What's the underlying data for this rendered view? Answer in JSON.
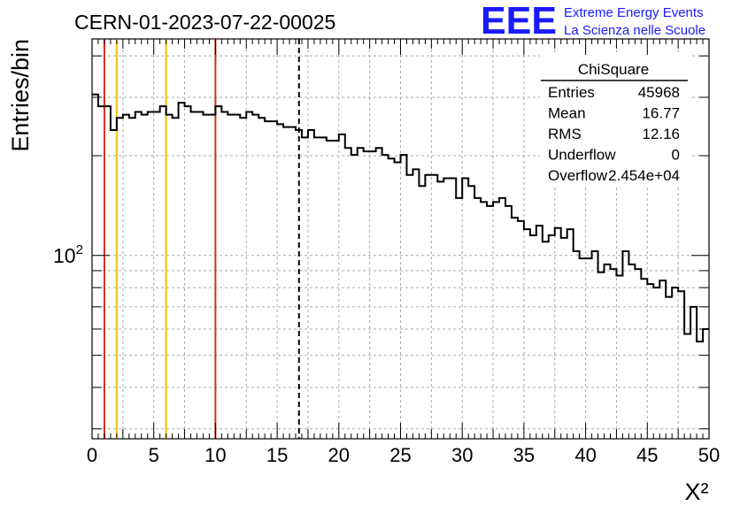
{
  "header": {
    "title": "CERN-01-2023-07-22-00025",
    "logo_text": "EEE",
    "logo_line1": "Extreme Energy Events",
    "logo_line2": "La Scienza nelle Scuole",
    "logo_color": "#1a1aff"
  },
  "stats": {
    "name": "ChiSquare",
    "rows": [
      {
        "label": "Entries",
        "value": "45968"
      },
      {
        "label": "Mean",
        "value": "16.77"
      },
      {
        "label": "RMS",
        "value": "12.16"
      },
      {
        "label": "Underflow",
        "value": "0"
      },
      {
        "label": "Overflow",
        "value": "2.454e+04"
      }
    ]
  },
  "chart_data": {
    "type": "histogram",
    "xlabel": "X²",
    "ylabel": "Entries/bin",
    "xlim": [
      0,
      50
    ],
    "ylim": [
      28,
      450
    ],
    "y_scale": "log",
    "x_ticks": [
      "0",
      "5",
      "10",
      "15",
      "20",
      "25",
      "30",
      "35",
      "40",
      "45",
      "50"
    ],
    "x_tick_values": [
      0,
      5,
      10,
      15,
      20,
      25,
      30,
      35,
      40,
      45,
      50
    ],
    "y_tick_label": "10",
    "y_tick_label_exp": "2",
    "y_tick_value": 100,
    "grid": true,
    "bin_width": 0.5,
    "counts": [
      306,
      282,
      282,
      239,
      260,
      266,
      260,
      271,
      266,
      271,
      271,
      282,
      266,
      260,
      289,
      282,
      271,
      271,
      266,
      266,
      282,
      271,
      266,
      266,
      260,
      271,
      266,
      260,
      254,
      254,
      249,
      244,
      244,
      239,
      227,
      239,
      227,
      227,
      222,
      222,
      232,
      211,
      201,
      211,
      206,
      206,
      211,
      201,
      196,
      191,
      201,
      175,
      182,
      162,
      175,
      175,
      167,
      171,
      171,
      149,
      171,
      162,
      149,
      145,
      141,
      145,
      149,
      141,
      130,
      127,
      120,
      115,
      123,
      110,
      115,
      121,
      113,
      120,
      103,
      98,
      98,
      103,
      89,
      94,
      91,
      87,
      103,
      94,
      91,
      85,
      82,
      80,
      84,
      75,
      80,
      78,
      58,
      70,
      55,
      60
    ],
    "vertical_lines": [
      {
        "x": 1,
        "color": "#dd2a1b",
        "style": "solid"
      },
      {
        "x": 2,
        "color": "#f5c000",
        "style": "solid"
      },
      {
        "x": 6,
        "color": "#f5c000",
        "style": "solid"
      },
      {
        "x": 10,
        "color": "#dd2a1b",
        "style": "solid"
      },
      {
        "x": 16.77,
        "color": "#000000",
        "style": "dashed"
      }
    ]
  }
}
